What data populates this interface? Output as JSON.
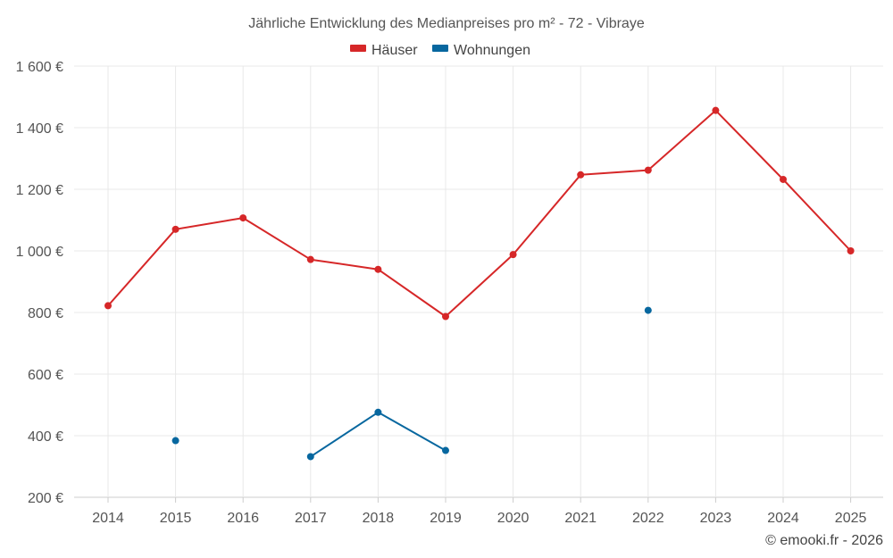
{
  "chart_data": {
    "type": "line",
    "title": "Jährliche Entwicklung des Medianpreises pro m² - 72 - Vibraye",
    "xlabel": "",
    "ylabel": "",
    "categories": [
      "2014",
      "2015",
      "2016",
      "2017",
      "2018",
      "2019",
      "2020",
      "2021",
      "2022",
      "2023",
      "2024",
      "2025"
    ],
    "ylim": [
      200,
      1600
    ],
    "yticks": [
      200,
      400,
      600,
      800,
      1000,
      1200,
      1400,
      1600
    ],
    "ytick_labels": [
      "200 €",
      "400 €",
      "600 €",
      "800 €",
      "1 000 €",
      "1 200 €",
      "1 400 €",
      "1 600 €"
    ],
    "grid": true,
    "legend_position": "top-center",
    "series": [
      {
        "name": "Häuser",
        "color": "#d62728",
        "values": [
          822,
          1070,
          1107,
          972,
          940,
          787,
          988,
          1247,
          1262,
          1456,
          1232,
          1000
        ]
      },
      {
        "name": "Wohnungen",
        "color": "#07679f",
        "values": [
          null,
          384,
          null,
          332,
          476,
          352,
          null,
          null,
          807,
          null,
          null,
          null
        ]
      }
    ]
  },
  "footer": {
    "credit": "© emooki.fr - 2026"
  }
}
